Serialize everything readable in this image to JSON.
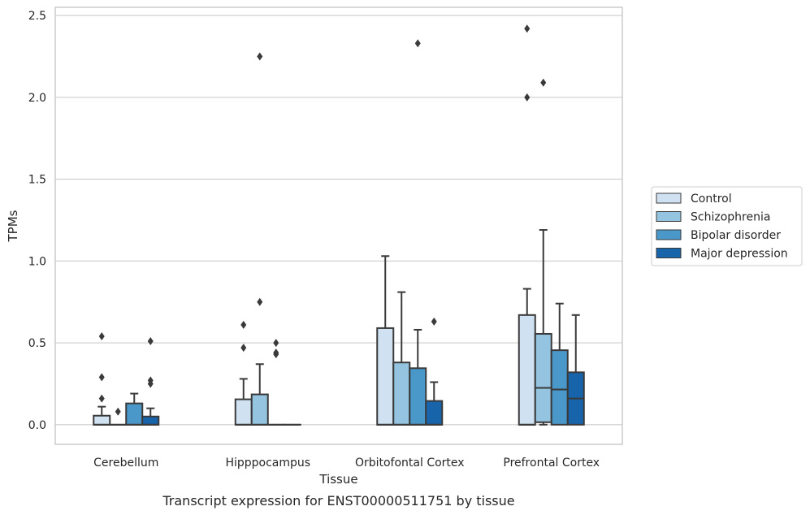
{
  "chart_data": {
    "type": "boxplot",
    "xlabel": "Tissue",
    "ylabel": "TPMs",
    "caption": "Transcript expression for ENST00000511751 by tissue",
    "ylim": [
      -0.12,
      2.55
    ],
    "yticks": [
      "0.0",
      "0.5",
      "1.0",
      "1.5",
      "2.0",
      "2.5"
    ],
    "ytick_values": [
      0,
      0.5,
      1.0,
      1.5,
      2.0,
      2.5
    ],
    "grid": "horizontal",
    "legend_position": "right",
    "categories": [
      "Cerebellum",
      "Hipppocampus",
      "Orbitofontal Cortex",
      "Prefrontal Cortex"
    ],
    "series": [
      {
        "name": "Control",
        "color": "#d0e1f2",
        "boxes": [
          {
            "q1": 0,
            "median": 0,
            "q3": 0.055,
            "whisker_low": 0,
            "whisker_high": 0.11,
            "outliers": [
              0.16,
              0.29,
              0.54
            ]
          },
          {
            "q1": 0,
            "median": 0,
            "q3": 0.155,
            "whisker_low": 0,
            "whisker_high": 0.28,
            "outliers": [
              0.47,
              0.61
            ]
          },
          {
            "q1": 0,
            "median": 0,
            "q3": 0.59,
            "whisker_low": 0,
            "whisker_high": 1.03,
            "outliers": []
          },
          {
            "q1": 0,
            "median": 0,
            "q3": 0.67,
            "whisker_low": 0,
            "whisker_high": 0.83,
            "outliers": [
              2.0,
              2.42
            ]
          }
        ]
      },
      {
        "name": "Schizophrenia",
        "color": "#94c4df",
        "boxes": [
          {
            "q1": 0,
            "median": 0,
            "q3": 0,
            "whisker_low": 0,
            "whisker_high": 0,
            "outliers": [
              0.08
            ]
          },
          {
            "q1": 0,
            "median": 0,
            "q3": 0.185,
            "whisker_low": 0,
            "whisker_high": 0.37,
            "outliers": [
              0.75,
              2.25
            ]
          },
          {
            "q1": 0,
            "median": 0,
            "q3": 0.38,
            "whisker_low": 0,
            "whisker_high": 0.81,
            "outliers": []
          },
          {
            "q1": 0.015,
            "median": 0.225,
            "q3": 0.555,
            "whisker_low": 0,
            "whisker_high": 1.19,
            "outliers": [
              2.09
            ]
          }
        ]
      },
      {
        "name": "Bipolar disorder",
        "color": "#4a98c9",
        "boxes": [
          {
            "q1": 0,
            "median": 0,
            "q3": 0.13,
            "whisker_low": 0,
            "whisker_high": 0.19,
            "outliers": []
          },
          {
            "q1": 0,
            "median": 0,
            "q3": 0,
            "whisker_low": 0,
            "whisker_high": 0,
            "outliers": [
              0.43,
              0.44,
              0.5
            ]
          },
          {
            "q1": 0,
            "median": 0,
            "q3": 0.345,
            "whisker_low": 0,
            "whisker_high": 0.58,
            "outliers": [
              2.33
            ]
          },
          {
            "q1": 0,
            "median": 0.215,
            "q3": 0.455,
            "whisker_low": 0,
            "whisker_high": 0.74,
            "outliers": []
          }
        ]
      },
      {
        "name": "Major depression",
        "color": "#1764ab",
        "boxes": [
          {
            "q1": 0,
            "median": 0,
            "q3": 0.05,
            "whisker_low": 0,
            "whisker_high": 0.1,
            "outliers": [
              0.25,
              0.27,
              0.51
            ]
          },
          {
            "q1": 0,
            "median": 0,
            "q3": 0,
            "whisker_low": 0,
            "whisker_high": 0,
            "outliers": []
          },
          {
            "q1": 0,
            "median": 0,
            "q3": 0.145,
            "whisker_low": 0,
            "whisker_high": 0.26,
            "outliers": [
              0.63
            ]
          },
          {
            "q1": 0,
            "median": 0.16,
            "q3": 0.32,
            "whisker_low": 0,
            "whisker_high": 0.67,
            "outliers": []
          }
        ]
      }
    ]
  }
}
